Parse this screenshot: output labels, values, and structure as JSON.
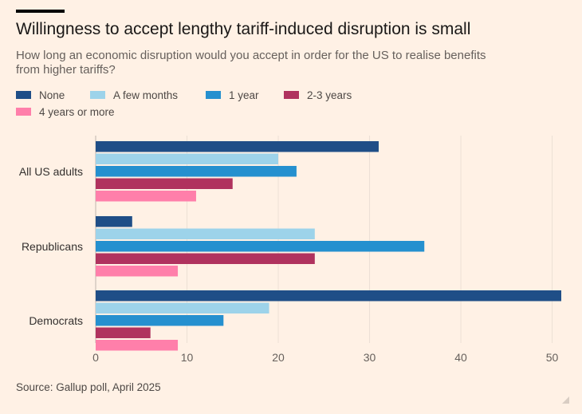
{
  "header": {
    "title": "Willingness to accept lengthy tariff-induced disruption is small",
    "subtitle": "How long an economic disruption would you accept in order for the US to realise benefits from higher tariffs?"
  },
  "footer": {
    "source": "Source: Gallup poll, April 2025"
  },
  "colors": {
    "none": "#1f4e87",
    "few_months": "#9dd3ea",
    "one_year": "#2590cf",
    "two_three_years": "#b0325e",
    "four_plus_years": "#ff7faa",
    "background": "#fff1e5"
  },
  "chart_data": {
    "type": "bar",
    "orientation": "horizontal",
    "title": "Willingness to accept lengthy tariff-induced disruption is small",
    "subtitle": "How long an economic disruption would you accept in order for the US to realise benefits from higher tariffs?",
    "xlabel": "",
    "ylabel": "",
    "xlim": [
      0,
      51
    ],
    "x_ticks": [
      0,
      10,
      20,
      30,
      40,
      50
    ],
    "grid": true,
    "legend_placement": "top-left",
    "categories": [
      "All US adults",
      "Republicans",
      "Democrats"
    ],
    "series": [
      {
        "name": "None",
        "color": "#1f4e87",
        "values": [
          31,
          4,
          51
        ]
      },
      {
        "name": "A few months",
        "color": "#9dd3ea",
        "values": [
          20,
          24,
          19
        ]
      },
      {
        "name": "1 year",
        "color": "#2590cf",
        "values": [
          22,
          36,
          14
        ]
      },
      {
        "name": "2-3 years",
        "color": "#b0325e",
        "values": [
          15,
          24,
          6
        ]
      },
      {
        "name": "4 years or more",
        "color": "#ff7faa",
        "values": [
          11,
          9,
          9
        ]
      }
    ]
  }
}
